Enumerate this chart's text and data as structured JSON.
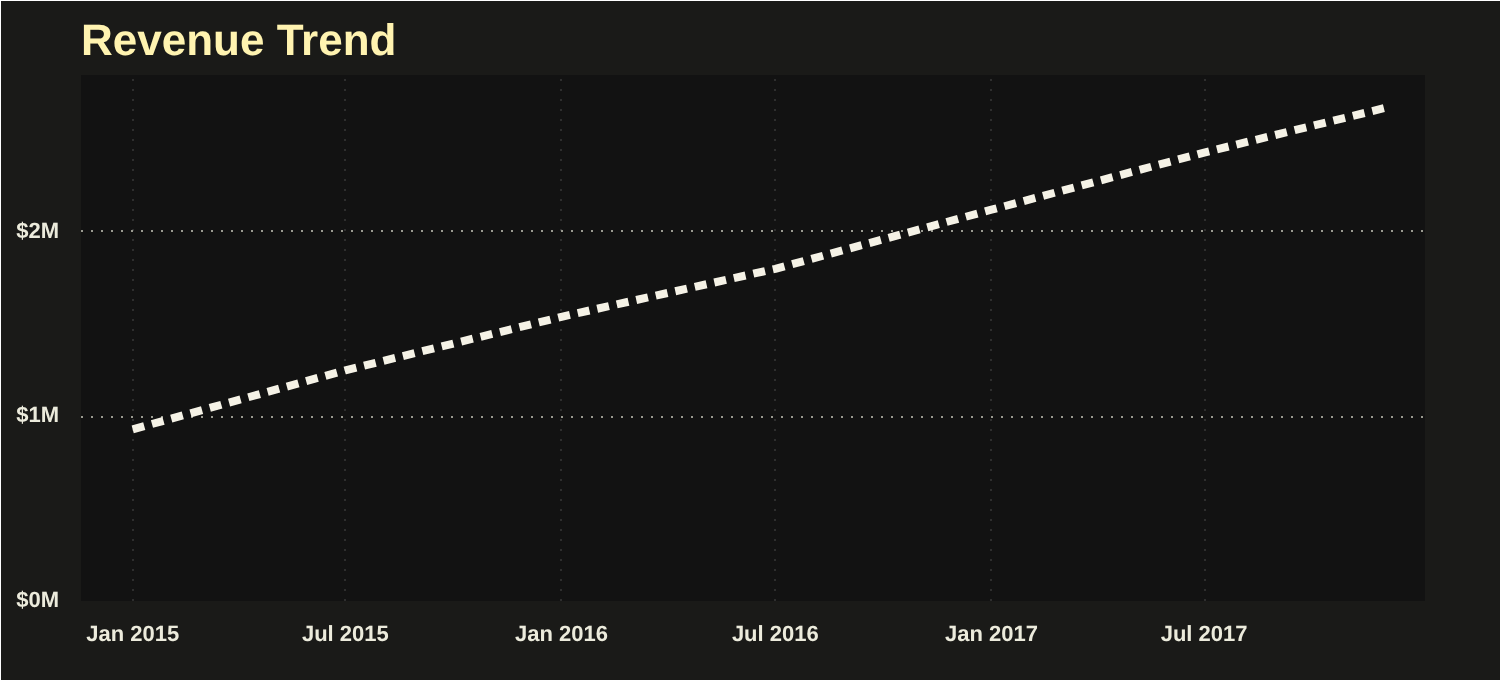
{
  "chart_data": {
    "type": "line",
    "title": "Revenue Trend",
    "x": [
      "2015-01",
      "2015-07",
      "2016-01",
      "2016-07",
      "2017-01",
      "2017-07",
      "2017-12"
    ],
    "series": [
      {
        "color": "#f5f2e6",
        "values": [
          0.93,
          1.25,
          1.54,
          1.8,
          2.12,
          2.43,
          2.67
        ]
      }
    ],
    "line_style": "dashed",
    "marker": "none",
    "grid": true,
    "xlim": [
      "2014-11-18",
      "2018-01-05"
    ],
    "xticks": [
      {
        "value": "2015-01",
        "label": "Jan 2015"
      },
      {
        "value": "2015-07",
        "label": "Jul 2015"
      },
      {
        "value": "2016-01",
        "label": "Jan 2016"
      },
      {
        "value": "2016-07",
        "label": "Jul 2016"
      },
      {
        "value": "2017-01",
        "label": "Jan 2017"
      },
      {
        "value": "2017-07",
        "label": "Jul 2017"
      }
    ],
    "ylim": [
      0,
      2.85
    ],
    "yticks": [
      {
        "value": 0,
        "label": "$0M"
      },
      {
        "value": 1,
        "label": "$1M"
      },
      {
        "value": 2,
        "label": "$2M"
      }
    ]
  }
}
